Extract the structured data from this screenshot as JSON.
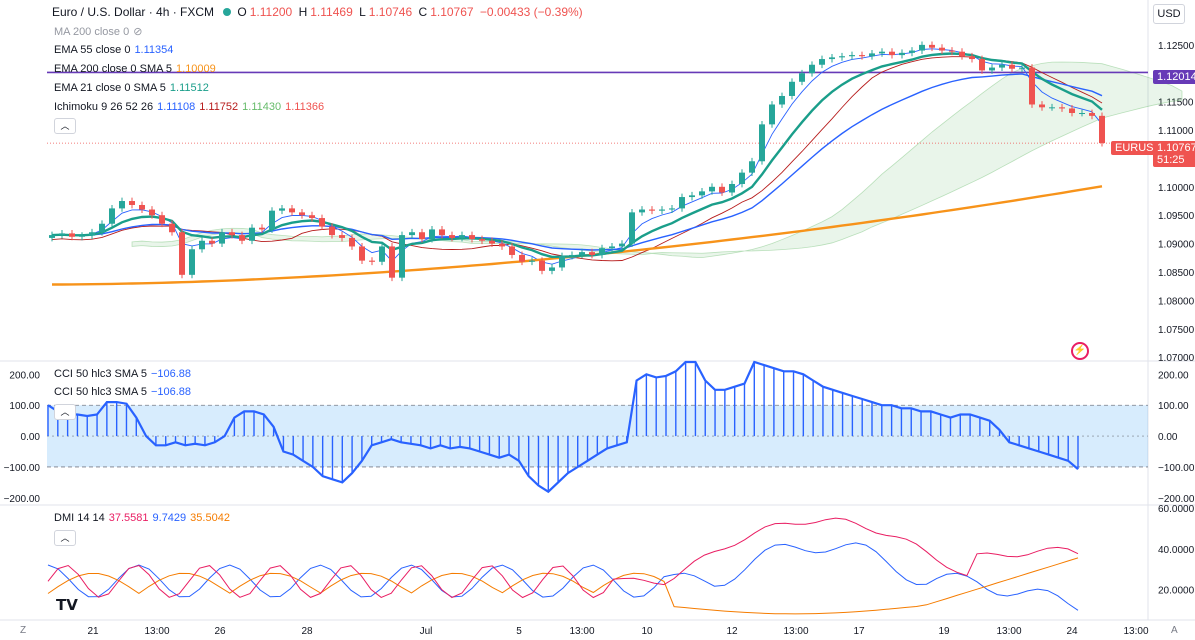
{
  "header": {
    "symbol": "Euro / U.S. Dollar · 4h · FXCM",
    "open_label": "O",
    "open": "1.11200",
    "high_label": "H",
    "high": "1.11469",
    "low_label": "L",
    "low": "1.10746",
    "close_label": "C",
    "close": "1.10767",
    "change": "−0.00433 (−0.39%)"
  },
  "currency_button": "USD",
  "indicators": {
    "ma200": "MA 200 close 0",
    "ema55_label": "EMA 55 close 0",
    "ema55_value": "1.11354",
    "ema200_label": "EMA 200 close 0 SMA 5",
    "ema200_value": "1.10009",
    "ema21_label": "EMA 21 close 0 SMA 5",
    "ema21_value": "1.11512",
    "ichimoku_label": "Ichimoku 9 26 52 26",
    "ichimoku_values": [
      "1.11108",
      "1.11752",
      "1.11430",
      "1.11366"
    ],
    "cci1_label": "CCI 50 hlc3 SMA 5",
    "cci1_value": "−106.88",
    "cci2_label": "CCI 50 hlc3 SMA 5",
    "cci2_value": "−106.88",
    "dmi_label": "DMI 14 14",
    "dmi_values": [
      "37.5581",
      "9.7429",
      "35.5042"
    ]
  },
  "price_tags": {
    "level": "1.12014",
    "symbol": "EURUSD",
    "last": "1.10767",
    "countdown": "51:25"
  },
  "colors": {
    "up": "#26a69a",
    "down": "#ef5350",
    "ema55": "#2962ff",
    "ema200": "#f7931a",
    "ema21": "#1a9e8a",
    "tenkan": "#2962ff",
    "kijun": "#b71c1c",
    "level": "#673ab7",
    "cci": "#2962ff",
    "dmi_plus": "#e91e63",
    "dmi_minus": "#2962ff",
    "adx": "#f57c00"
  },
  "chart_data": [
    {
      "type": "candlestick",
      "title": "Euro / U.S. Dollar · 4h · FXCM",
      "x_tick_labels": [
        "21",
        "13:00",
        "26",
        "28",
        "Jul",
        "5",
        "13:00",
        "10",
        "12",
        "13:00",
        "17",
        "19",
        "13:00",
        "24",
        "13:00"
      ],
      "y_tick_labels": [
        "1.12500",
        "1.12000",
        "1.11500",
        "1.11000",
        "1.10500",
        "1.10000",
        "1.09500",
        "1.09000",
        "1.08500",
        "1.08000",
        "1.07500",
        "1.07000"
      ],
      "ylim": [
        1.0695,
        1.1285
      ],
      "horizontal_level": 1.12014,
      "close_series": [
        1.0915,
        1.0918,
        1.0912,
        1.0914,
        1.092,
        1.0935,
        1.0962,
        1.0975,
        1.0968,
        1.096,
        1.095,
        1.0935,
        1.092,
        1.0845,
        1.089,
        1.0905,
        1.09,
        1.092,
        1.0915,
        1.0905,
        1.0928,
        1.0925,
        1.0958,
        1.0962,
        1.0955,
        1.095,
        1.0945,
        1.093,
        1.0915,
        1.091,
        1.0895,
        1.087,
        1.0868,
        1.0895,
        1.084,
        1.0915,
        1.092,
        1.0908,
        1.0925,
        1.0915,
        1.091,
        1.0915,
        1.0908,
        1.0905,
        1.09,
        1.0895,
        1.088,
        1.0868,
        1.087,
        1.0852,
        1.0858,
        1.0878,
        1.088,
        1.0885,
        1.088,
        1.0892,
        1.0895,
        1.09,
        1.0955,
        1.096,
        1.0958,
        1.096,
        1.0962,
        1.0982,
        1.0985,
        1.0992,
        1.1,
        1.099,
        1.1005,
        1.1025,
        1.1045,
        1.111,
        1.1145,
        1.116,
        1.1185,
        1.12,
        1.1215,
        1.1225,
        1.1228,
        1.123,
        1.1232,
        1.123,
        1.1235,
        1.1238,
        1.1232,
        1.1236,
        1.124,
        1.125,
        1.1245,
        1.124,
        1.1238,
        1.123,
        1.1225,
        1.1205,
        1.121,
        1.1215,
        1.1208,
        1.121,
        1.1145,
        1.114,
        1.114,
        1.1138,
        1.113,
        1.113,
        1.1125,
        1.1077
      ],
      "ema200_series_range": [
        1.0828,
        1.1001
      ],
      "ema21_last": 1.11512,
      "ema55_last": 1.11354,
      "ichimoku_last": [
        1.11108,
        1.11752,
        1.1143,
        1.11366
      ]
    },
    {
      "type": "line",
      "title": "CCI 50 hlc3 SMA 5",
      "y_tick_labels": [
        "200.00",
        "100.00",
        "0.00",
        "−100.00",
        "−200.00"
      ],
      "ylim": [
        -220,
        240
      ],
      "band": [
        -100,
        100
      ],
      "values": [
        100,
        80,
        70,
        70,
        65,
        70,
        110,
        110,
        105,
        60,
        0,
        -30,
        -30,
        -20,
        -30,
        -25,
        -30,
        -20,
        0,
        60,
        80,
        80,
        70,
        30,
        -50,
        -60,
        -80,
        -100,
        -130,
        -140,
        -150,
        -120,
        -80,
        -30,
        -20,
        -10,
        -20,
        -25,
        -30,
        -40,
        -30,
        -40,
        -35,
        -40,
        -50,
        -60,
        -70,
        -60,
        -80,
        -130,
        -160,
        -180,
        -150,
        -120,
        -100,
        -80,
        -60,
        -40,
        -30,
        -20,
        180,
        200,
        190,
        195,
        210,
        240,
        240,
        180,
        150,
        150,
        160,
        170,
        240,
        230,
        220,
        210,
        210,
        200,
        180,
        160,
        150,
        140,
        130,
        120,
        110,
        100,
        100,
        90,
        90,
        80,
        80,
        70,
        60,
        70,
        70,
        60,
        50,
        20,
        -20,
        -30,
        -40,
        -50,
        -60,
        -70,
        -80,
        -107
      ],
      "last_value": -106.88
    },
    {
      "type": "line",
      "title": "DMI 14 14",
      "y_tick_labels": [
        "60.0000",
        "40.0000",
        "20.0000"
      ],
      "ylim": [
        5,
        61
      ],
      "series": [
        {
          "name": "+DI",
          "color": "#e91e63",
          "last": 37.5581
        },
        {
          "name": "−DI",
          "color": "#2962ff",
          "last": 9.7429
        },
        {
          "name": "ADX",
          "color": "#f57c00",
          "last": 35.5042
        }
      ]
    }
  ]
}
